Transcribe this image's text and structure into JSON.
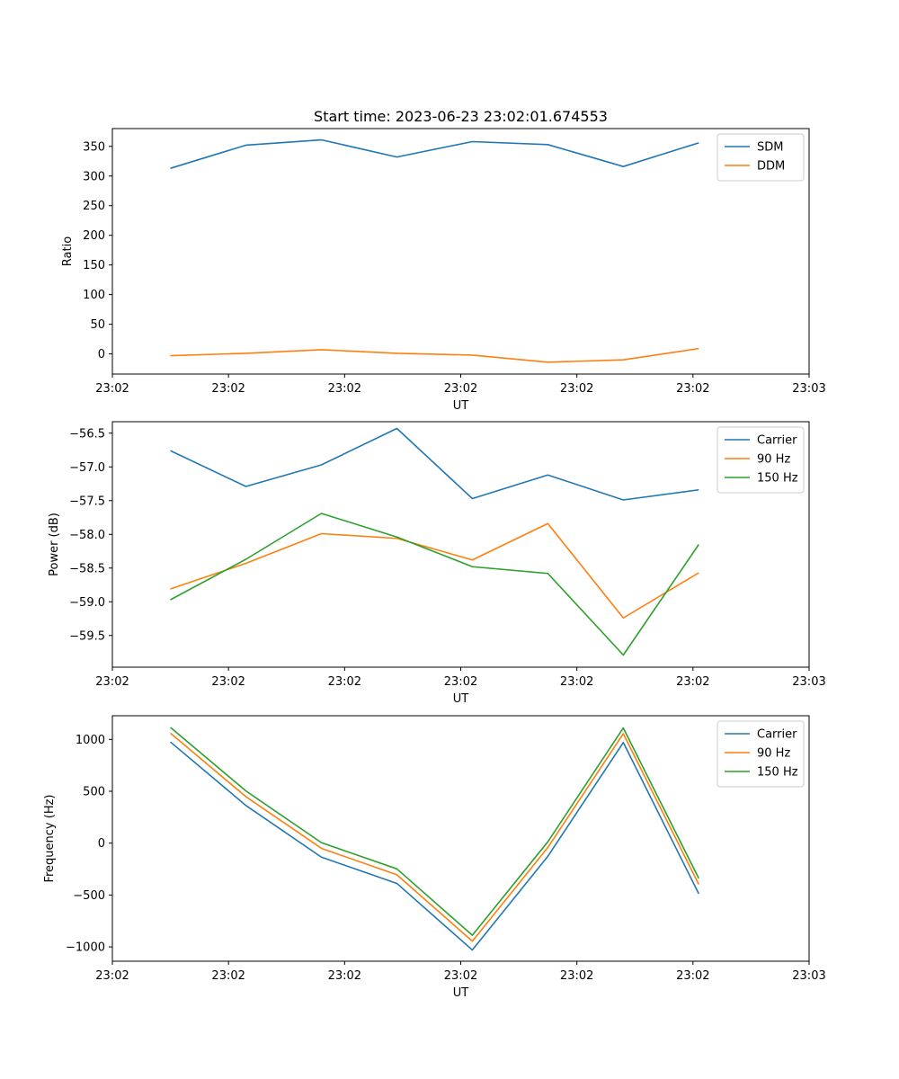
{
  "chart_data": [
    {
      "type": "line",
      "title": "Start time: 2023-06-23 23:02:01.674553",
      "xlabel": "UT",
      "ylabel": "Ratio",
      "x_tick_labels": [
        "23:02",
        "23:02",
        "23:02",
        "23:02",
        "23:02",
        "23:02",
        "23:03"
      ],
      "x": [
        0.5,
        1.15,
        1.8,
        2.45,
        3.1,
        3.75,
        4.4,
        5.05
      ],
      "xlim": [
        0,
        6
      ],
      "ylim": [
        -34,
        380
      ],
      "y_ticks": [
        0,
        50,
        100,
        150,
        200,
        250,
        300,
        350
      ],
      "legend_position": "upper right",
      "series": [
        {
          "name": "SDM",
          "color": "#1f77b4",
          "values": [
            313,
            352,
            361,
            332,
            358,
            353,
            316,
            356
          ]
        },
        {
          "name": "DDM",
          "color": "#ff7f0e",
          "values": [
            -3,
            1,
            7,
            1,
            -2,
            -14,
            -10,
            9
          ]
        }
      ]
    },
    {
      "type": "line",
      "title": "",
      "xlabel": "UT",
      "ylabel": "Power (dB)",
      "x_tick_labels": [
        "23:02",
        "23:02",
        "23:02",
        "23:02",
        "23:02",
        "23:02",
        "23:03"
      ],
      "x": [
        0.5,
        1.15,
        1.8,
        2.45,
        3.1,
        3.75,
        4.4,
        5.05
      ],
      "xlim": [
        0,
        6
      ],
      "ylim": [
        -59.97,
        -56.33
      ],
      "y_ticks": [
        -59.5,
        -59.0,
        -58.5,
        -58.0,
        -57.5,
        -57.0,
        -56.5
      ],
      "y_tick_labels": [
        "−59.5",
        "−59.0",
        "−58.5",
        "−58.0",
        "−57.5",
        "−57.0",
        "−56.5"
      ],
      "legend_position": "upper right",
      "series": [
        {
          "name": "Carrier",
          "color": "#1f77b4",
          "values": [
            -56.76,
            -57.29,
            -56.97,
            -56.43,
            -57.47,
            -57.12,
            -57.49,
            -57.34
          ]
        },
        {
          "name": "90 Hz",
          "color": "#ff7f0e",
          "values": [
            -58.81,
            -58.43,
            -57.99,
            -58.06,
            -58.38,
            -57.84,
            -59.24,
            -58.57
          ]
        },
        {
          "name": "150 Hz",
          "color": "#2ca02c",
          "values": [
            -58.97,
            -58.37,
            -57.69,
            -58.04,
            -58.48,
            -58.58,
            -59.79,
            -58.15
          ]
        }
      ]
    },
    {
      "type": "line",
      "title": "",
      "xlabel": "UT",
      "ylabel": "Frequency (Hz)",
      "x_tick_labels": [
        "23:02",
        "23:02",
        "23:02",
        "23:02",
        "23:02",
        "23:02",
        "23:03"
      ],
      "x": [
        0.5,
        1.15,
        1.8,
        2.45,
        3.1,
        3.75,
        4.4,
        5.05
      ],
      "xlim": [
        0,
        6
      ],
      "ylim": [
        -1138,
        1228
      ],
      "y_ticks": [
        -1000,
        -500,
        0,
        500,
        1000
      ],
      "y_tick_labels": [
        "−1000",
        "−500",
        "0",
        "500",
        "1000"
      ],
      "legend_position": "upper right",
      "series": [
        {
          "name": "Carrier",
          "color": "#1f77b4",
          "values": [
            975,
            363,
            -135,
            -388,
            -1030,
            -127,
            970,
            -488
          ]
        },
        {
          "name": "90 Hz",
          "color": "#ff7f0e",
          "values": [
            1060,
            448,
            -50,
            -305,
            -945,
            -42,
            1055,
            -398
          ]
        },
        {
          "name": "150 Hz",
          "color": "#2ca02c",
          "values": [
            1115,
            503,
            5,
            -248,
            -888,
            13,
            1110,
            -340
          ]
        }
      ]
    }
  ]
}
